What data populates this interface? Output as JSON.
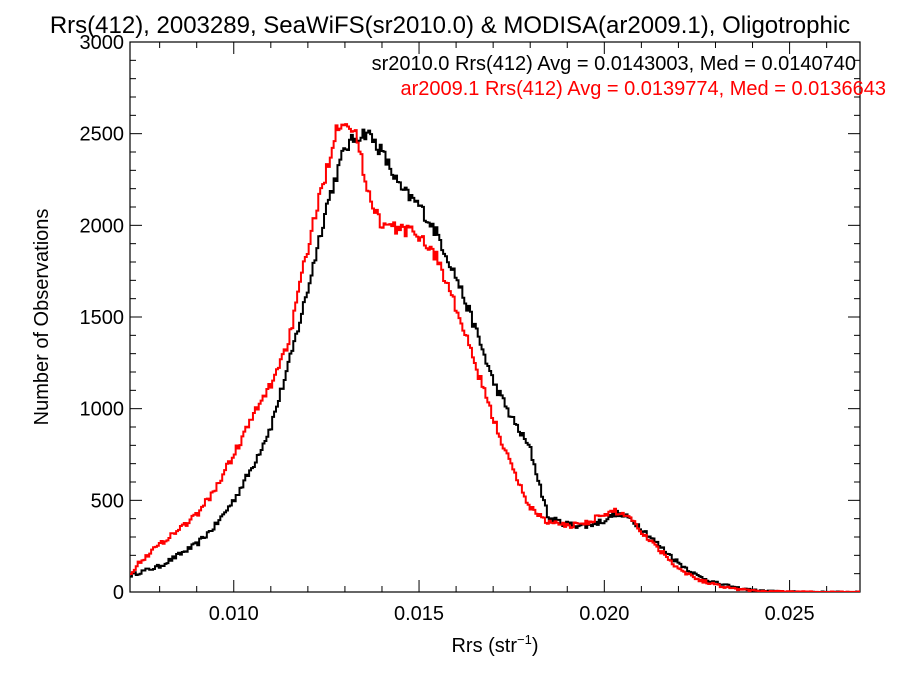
{
  "chart_data": {
    "type": "histogram",
    "title": "Rrs(412), 2003289, SeaWiFS(sr2010.0) & MODISA(ar2009.1), Oligotrophic",
    "xlabel": "Rrs (str",
    "xlabel_sup": "−1",
    "xlabel_close": ")",
    "ylabel": "Number of Observations",
    "xlim": [
      0.0072,
      0.0269
    ],
    "ylim": [
      0,
      3000
    ],
    "xticks": [
      0.01,
      0.015,
      0.02,
      0.025
    ],
    "xtick_labels": [
      "0.010",
      "0.015",
      "0.020",
      "0.025"
    ],
    "yticks": [
      0,
      500,
      1000,
      1500,
      2000,
      2500,
      3000
    ],
    "ytick_labels": [
      "0",
      "500",
      "1000",
      "1500",
      "2000",
      "2500",
      "3000"
    ],
    "grid": false,
    "legend_position": "top-right",
    "series": [
      {
        "name": "sr2010.0 Rrs(412) Avg = 0.0143003, Med = 0.0140740",
        "color": "#000000",
        "x": [
          0.0072,
          0.0075,
          0.008,
          0.0085,
          0.009,
          0.0095,
          0.01,
          0.0105,
          0.011,
          0.0115,
          0.012,
          0.0125,
          0.013,
          0.0133,
          0.0136,
          0.014,
          0.0145,
          0.015,
          0.0155,
          0.016,
          0.0165,
          0.017,
          0.0175,
          0.018,
          0.0185,
          0.019,
          0.0195,
          0.02,
          0.0203,
          0.0207,
          0.021,
          0.0215,
          0.022,
          0.0225,
          0.023,
          0.0235,
          0.024,
          0.0245,
          0.025,
          0.026,
          0.0269
        ],
        "values": [
          90,
          110,
          140,
          200,
          260,
          360,
          500,
          680,
          900,
          1250,
          1650,
          2100,
          2420,
          2480,
          2510,
          2400,
          2200,
          2110,
          1950,
          1720,
          1450,
          1150,
          950,
          780,
          400,
          370,
          360,
          390,
          430,
          400,
          350,
          250,
          160,
          90,
          50,
          25,
          10,
          4,
          1,
          0,
          0
        ]
      },
      {
        "name": "ar2009.1 Rrs(412) Avg = 0.0139774, Med = 0.0136643",
        "color": "#ff0000",
        "x": [
          0.0072,
          0.0075,
          0.008,
          0.0085,
          0.009,
          0.0095,
          0.01,
          0.0105,
          0.011,
          0.0115,
          0.012,
          0.0125,
          0.0128,
          0.013,
          0.0133,
          0.0136,
          0.014,
          0.0145,
          0.015,
          0.0155,
          0.016,
          0.0165,
          0.017,
          0.0175,
          0.018,
          0.0185,
          0.019,
          0.0195,
          0.02,
          0.0203,
          0.0207,
          0.021,
          0.0215,
          0.022,
          0.0225,
          0.023,
          0.0235,
          0.024,
          0.0245,
          0.025,
          0.026,
          0.0269
        ],
        "values": [
          100,
          170,
          260,
          340,
          420,
          560,
          750,
          950,
          1130,
          1380,
          1880,
          2300,
          2550,
          2580,
          2500,
          2200,
          2000,
          1980,
          1950,
          1820,
          1550,
          1250,
          950,
          680,
          460,
          380,
          360,
          380,
          420,
          440,
          410,
          330,
          230,
          130,
          70,
          40,
          18,
          8,
          3,
          1,
          0,
          0
        ]
      }
    ]
  }
}
